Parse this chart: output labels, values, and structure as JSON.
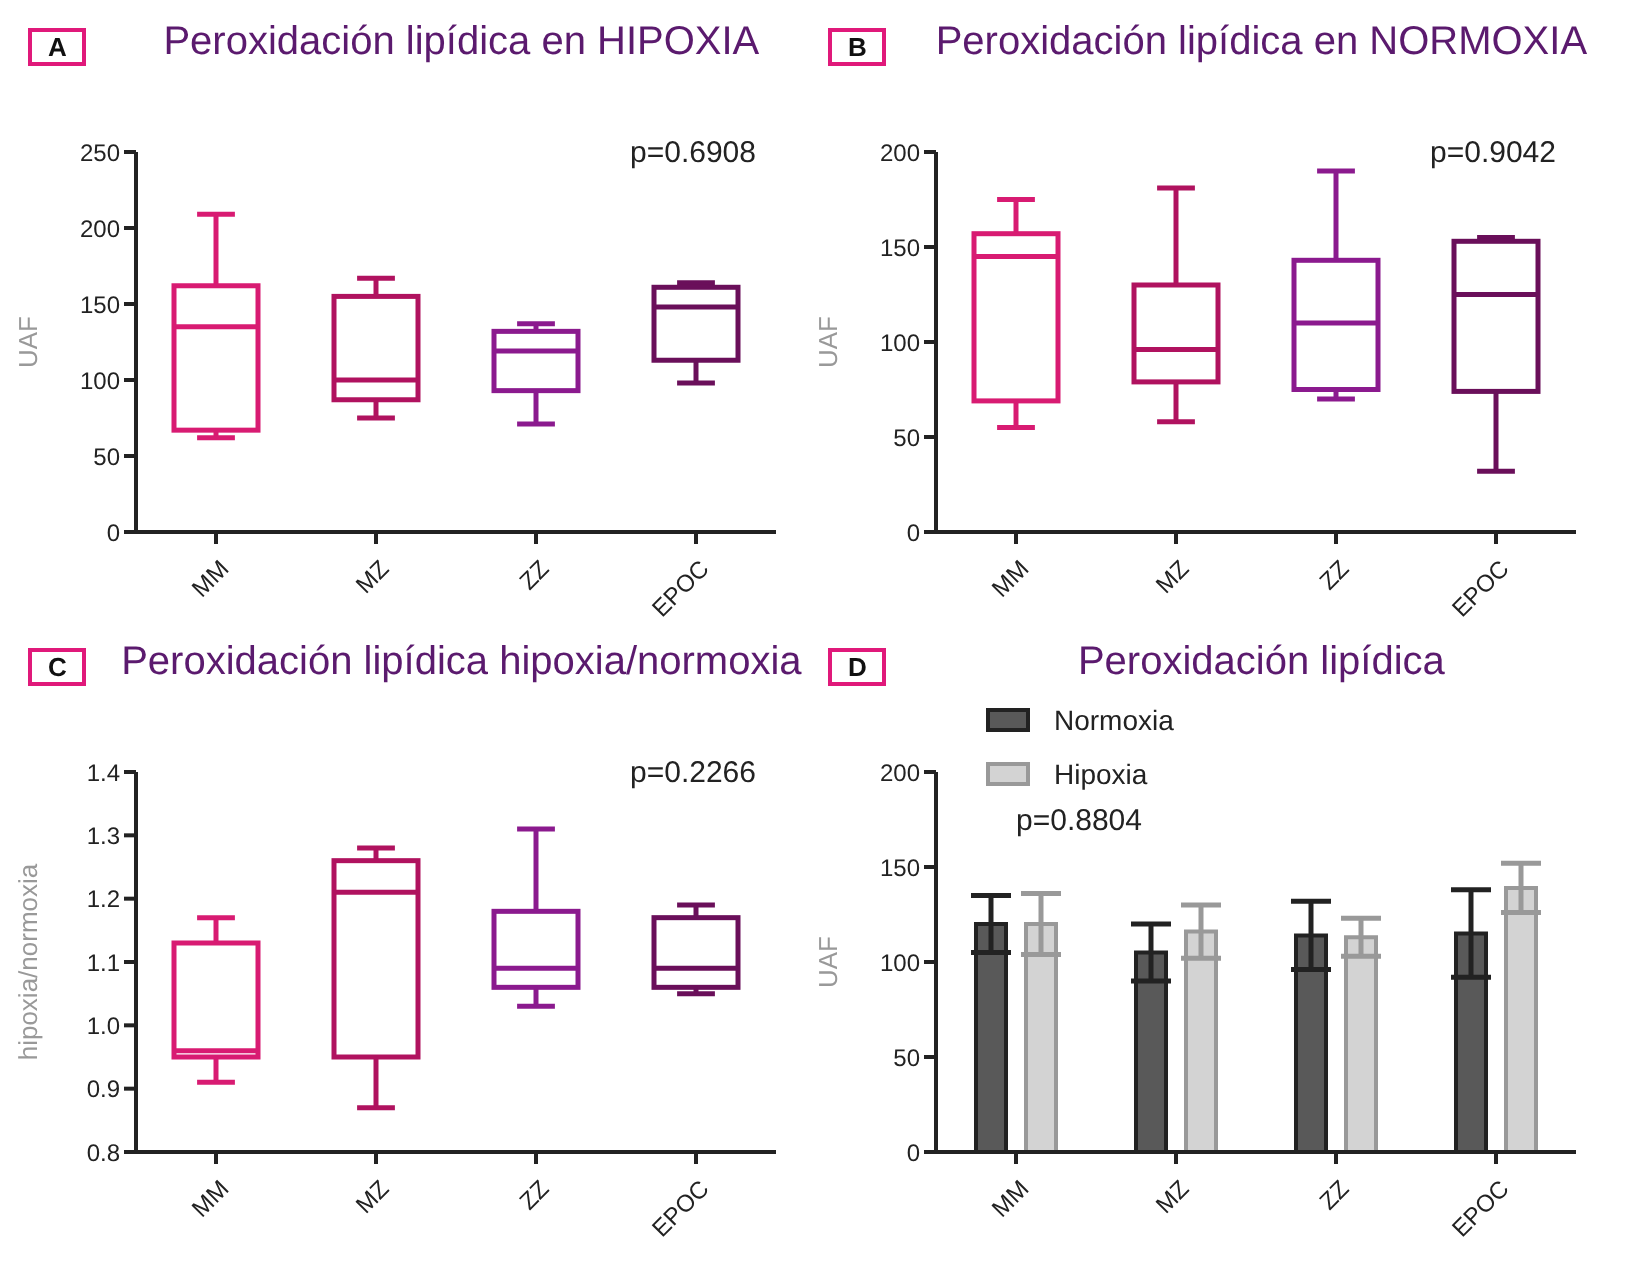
{
  "chart_data": [
    {
      "type": "box",
      "title": "Peroxidación lipídica en HIPOXIA",
      "ylabel": "UAF",
      "annotations": [
        "A",
        "p=0.6908"
      ],
      "categories": [
        "MM",
        "MZ",
        "ZZ",
        "EPOC"
      ],
      "colors": [
        "#d81b72",
        "#b0125f",
        "#8b1a8e",
        "#6a0f5a"
      ],
      "ylim": [
        0,
        250
      ],
      "yticks": [
        0,
        50,
        100,
        150,
        200,
        250
      ],
      "legend": false,
      "boxes": [
        {
          "low": 62,
          "q1": 67,
          "median": 135,
          "q3": 162,
          "high": 209
        },
        {
          "low": 75,
          "q1": 87,
          "median": 100,
          "q3": 155,
          "high": 167
        },
        {
          "low": 71,
          "q1": 93,
          "median": 119,
          "q3": 132,
          "high": 137
        },
        {
          "low": 98,
          "q1": 113,
          "median": 148,
          "q3": 161,
          "high": 164
        }
      ]
    },
    {
      "type": "box",
      "title": "Peroxidación lipídica en NORMOXIA",
      "ylabel": "UAF",
      "annotations": [
        "B",
        "p=0.9042"
      ],
      "categories": [
        "MM",
        "MZ",
        "ZZ",
        "EPOC"
      ],
      "colors": [
        "#d81b72",
        "#b0125f",
        "#8b1a8e",
        "#6a0f5a"
      ],
      "ylim": [
        0,
        200
      ],
      "yticks": [
        0,
        50,
        100,
        150,
        200
      ],
      "legend": false,
      "boxes": [
        {
          "low": 55,
          "q1": 69,
          "median": 145,
          "q3": 157,
          "high": 175
        },
        {
          "low": 58,
          "q1": 79,
          "median": 96,
          "q3": 130,
          "high": 181
        },
        {
          "low": 70,
          "q1": 75,
          "median": 110,
          "q3": 143,
          "high": 190
        },
        {
          "low": 32,
          "q1": 74,
          "median": 125,
          "q3": 153,
          "high": 155
        }
      ]
    },
    {
      "type": "box",
      "title": "Peroxidación lipídica hipoxia/normoxia",
      "ylabel": "hipoxia/normoxia",
      "annotations": [
        "C",
        "p=0.2266"
      ],
      "categories": [
        "MM",
        "MZ",
        "ZZ",
        "EPOC"
      ],
      "colors": [
        "#d81b72",
        "#b0125f",
        "#8b1a8e",
        "#6a0f5a"
      ],
      "ylim": [
        0.8,
        1.4
      ],
      "yticks": [
        {
          "value": 0.8,
          "label": "0.8"
        },
        {
          "value": 0.9,
          "label": "0.9"
        },
        {
          "value": 1.0,
          "label": "1.0"
        },
        {
          "value": 1.1,
          "label": "1.1"
        },
        {
          "value": 1.2,
          "label": "1.2"
        },
        {
          "value": 1.3,
          "label": "1.3"
        },
        {
          "value": 1.4,
          "label": "1.4"
        }
      ],
      "legend": false,
      "boxes": [
        {
          "low": 0.91,
          "q1": 0.95,
          "median": 0.96,
          "q3": 1.13,
          "high": 1.17
        },
        {
          "low": 0.87,
          "q1": 0.95,
          "median": 1.21,
          "q3": 1.26,
          "high": 1.28
        },
        {
          "low": 1.03,
          "q1": 1.06,
          "median": 1.09,
          "q3": 1.18,
          "high": 1.31
        },
        {
          "low": 1.05,
          "q1": 1.06,
          "median": 1.09,
          "q3": 1.17,
          "high": 1.19
        }
      ]
    },
    {
      "type": "bar",
      "title": "Peroxidación lipídica",
      "ylabel": "UAF",
      "annotations": [
        "D",
        "p=0.8804"
      ],
      "categories": [
        "MM",
        "MZ",
        "ZZ",
        "EPOC"
      ],
      "ylim": [
        0,
        200
      ],
      "yticks": [
        0,
        50,
        100,
        150,
        200
      ],
      "legend": "top left",
      "series": [
        {
          "name": "Normoxia",
          "color": "#595959",
          "values": [
            120,
            105,
            114,
            115
          ],
          "errors": [
            15,
            15,
            18,
            23
          ]
        },
        {
          "name": "Hipoxia",
          "color": "#d3d3d3",
          "values": [
            120,
            116,
            113,
            139
          ],
          "errors": [
            16,
            14,
            10,
            13
          ]
        }
      ]
    }
  ]
}
